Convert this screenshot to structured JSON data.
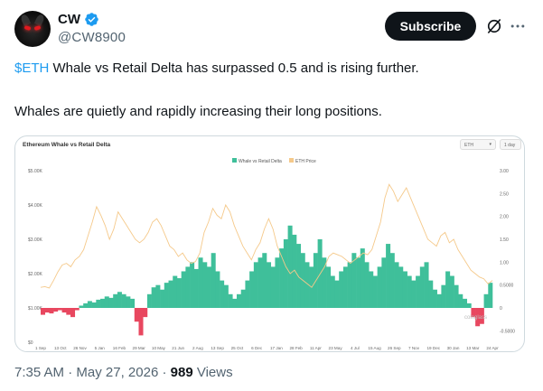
{
  "author": {
    "display_name": "CW",
    "handle": "@CW8900",
    "verified_color": "#1d9bf0"
  },
  "actions": {
    "subscribe_label": "Subscribe",
    "grok_icon": "grok-icon",
    "more_icon": "more-icon"
  },
  "tweet": {
    "cashtag": "$ETH",
    "line1_rest": " Whale vs Retail Delta has surpassed 0.5 and is rising further.",
    "line2": "Whales are quietly and rapidly increasing their long positions."
  },
  "chart_data": {
    "type": "area",
    "title": "Ethereum Whale vs Retail Delta",
    "selectors": {
      "asset": "ETH",
      "interval": "1 day"
    },
    "legend": [
      "Whale vs Retail Delta",
      "ETH Price"
    ],
    "legend_placement": "top-center",
    "watermark": "coinglass",
    "x_ticks": [
      "1 Sep",
      "13 Oct",
      "26 Nov",
      "5 Jan",
      "16 Feb",
      "29 Mar",
      "10 May",
      "21 Jun",
      "2 Aug",
      "13 Sep",
      "25 Oct",
      "6 Dec",
      "17 Jan",
      "28 Feb",
      "11 Apr",
      "23 May",
      "4 Jul",
      "15 Aug",
      "26 Sep",
      "7 Nov",
      "19 Dec",
      "30 Jan",
      "13 Mar",
      "24 Apr"
    ],
    "y_left_ticks": [
      "$5.00K",
      "$4.00K",
      "$3.00K",
      "$2.00K",
      "$1.00K",
      "$0"
    ],
    "y_left_values": [
      5000,
      4000,
      3000,
      2000,
      1000,
      0
    ],
    "y_right_ticks": [
      "3.00",
      "2.50",
      "2.00",
      "1.50",
      "1.00",
      "0.5000",
      "0",
      "-0.5000"
    ],
    "y_right_values": [
      3.0,
      2.5,
      2.0,
      1.5,
      1.0,
      0.5,
      0,
      -0.5
    ],
    "series": [
      {
        "name": "Whale vs Retail Delta",
        "color": "#3fbf9a",
        "negative_color": "#e8475f",
        "axis": "right",
        "values": [
          -0.15,
          -0.1,
          -0.12,
          -0.08,
          -0.05,
          -0.1,
          -0.15,
          -0.2,
          -0.05,
          0.05,
          0.1,
          0.15,
          0.12,
          0.18,
          0.2,
          0.25,
          0.22,
          0.3,
          0.35,
          0.3,
          0.25,
          0.2,
          -0.3,
          -0.6,
          -0.2,
          0.3,
          0.45,
          0.5,
          0.4,
          0.55,
          0.6,
          0.7,
          0.65,
          0.8,
          0.9,
          1.0,
          0.85,
          1.1,
          1.0,
          0.9,
          1.2,
          0.8,
          0.6,
          0.5,
          0.3,
          0.2,
          0.3,
          0.4,
          0.6,
          0.8,
          1.0,
          1.1,
          1.2,
          1.0,
          0.9,
          1.1,
          1.3,
          1.5,
          1.8,
          1.6,
          1.4,
          1.2,
          1.0,
          0.9,
          1.2,
          1.5,
          1.1,
          0.9,
          0.7,
          0.6,
          0.8,
          0.9,
          1.0,
          1.2,
          1.1,
          1.3,
          1.0,
          0.8,
          0.7,
          0.9,
          1.1,
          1.4,
          1.2,
          1.0,
          0.9,
          0.8,
          0.7,
          0.6,
          0.7,
          0.9,
          1.0,
          0.6,
          0.4,
          0.3,
          0.5,
          0.8,
          0.7,
          0.5,
          0.3,
          0.2,
          0.1,
          -0.2,
          -0.4,
          -0.35,
          0.3,
          0.55
        ]
      },
      {
        "name": "ETH Price",
        "color": "#f5c98a",
        "axis": "left",
        "values": [
          1600,
          1620,
          1580,
          1800,
          2050,
          2250,
          2300,
          2200,
          2400,
          2500,
          2700,
          3100,
          3500,
          3950,
          3700,
          3400,
          3000,
          3300,
          3800,
          3600,
          3400,
          3200,
          3000,
          2900,
          3000,
          3200,
          3500,
          3600,
          3400,
          3100,
          2800,
          2700,
          2500,
          2600,
          2400,
          2300,
          2350,
          2600,
          3200,
          3500,
          3900,
          3700,
          3600,
          4000,
          3800,
          3400,
          3100,
          2800,
          2600,
          2400,
          2700,
          2900,
          3300,
          3600,
          3300,
          2800,
          2500,
          2200,
          2000,
          2100,
          1900,
          1800,
          1700,
          1600,
          1800,
          2000,
          2200,
          2500,
          2600,
          2550,
          2500,
          2400,
          2300,
          2400,
          2500,
          2600,
          2550,
          2700,
          3100,
          3500,
          4200,
          4600,
          4400,
          4100,
          4300,
          4500,
          4200,
          3900,
          3600,
          3300,
          3000,
          2900,
          2800,
          3100,
          3200,
          2900,
          3000,
          2700,
          2500,
          2300,
          2100,
          2000,
          1900,
          1850,
          1700,
          1800
        ]
      }
    ]
  },
  "meta": {
    "time": "7:35 AM",
    "sep1": " · ",
    "date": "May 27, 2026",
    "sep2": " · ",
    "views": "989",
    "views_label": " Views"
  }
}
